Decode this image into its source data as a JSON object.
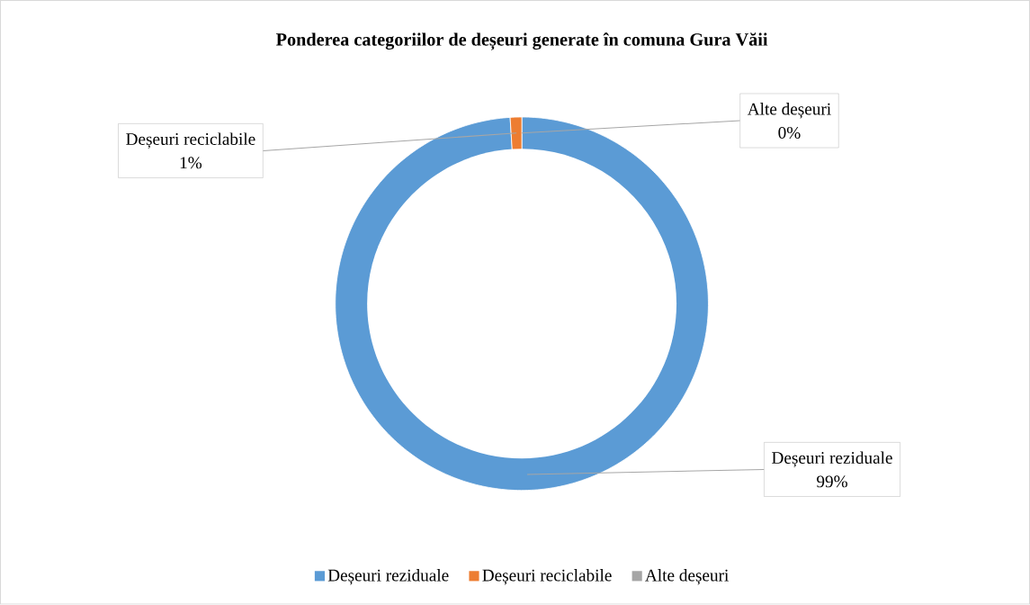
{
  "chart_data": {
    "type": "donut",
    "title": "Ponderea categoriilor de deșeuri generate în comuna Gura Văii",
    "categories": [
      "Deșeuri reziduale",
      "Deșeuri reciclabile",
      "Alte deșeuri"
    ],
    "values": [
      99,
      1,
      0
    ],
    "colors": [
      "#5b9bd5",
      "#ed7d31",
      "#a5a5a5"
    ],
    "value_labels": [
      "99%",
      "1%",
      "0%"
    ],
    "legend": "bottom"
  }
}
